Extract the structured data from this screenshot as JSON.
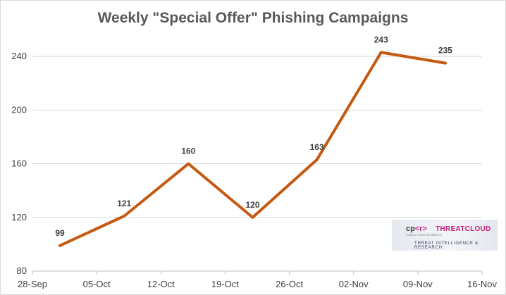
{
  "chart_data": {
    "type": "line",
    "title": "Weekly \"Special Offer\" Phishing Campaigns",
    "xlabel": "",
    "ylabel": "",
    "x_tick_labels": [
      "28-Sep",
      "05-Oct",
      "12-Oct",
      "19-Oct",
      "26-Oct",
      "02-Nov",
      "09-Nov",
      "16-Nov"
    ],
    "x_dates": [
      "2020-09-28",
      "2020-10-05",
      "2020-10-12",
      "2020-10-19",
      "2020-10-26",
      "2020-11-02",
      "2020-11-09",
      "2020-11-16"
    ],
    "y_ticks": [
      80,
      120,
      160,
      200,
      240
    ],
    "ylim": [
      80,
      260
    ],
    "grid": true,
    "legend": "none",
    "series": [
      {
        "name": "",
        "color": "#c65911",
        "points": [
          {
            "x": "2020-10-01",
            "y": 99,
            "label": "99"
          },
          {
            "x": "2020-10-08",
            "y": 121,
            "label": "121"
          },
          {
            "x": "2020-10-15",
            "y": 160,
            "label": "160"
          },
          {
            "x": "2020-10-22",
            "y": 120,
            "label": "120"
          },
          {
            "x": "2020-10-29",
            "y": 163,
            "label": "163"
          },
          {
            "x": "2020-11-05",
            "y": 243,
            "label": "243"
          },
          {
            "x": "2020-11-12",
            "y": 235,
            "label": "235"
          }
        ]
      }
    ]
  },
  "logo": {
    "cp_text": "cp",
    "bracket_text": "<r>",
    "brand_text": "THREATCLOUD",
    "sub_text": "CHECK POINT RESEARCH",
    "tagline": "THREAT INTELLIGENCE & RESEARCH"
  }
}
